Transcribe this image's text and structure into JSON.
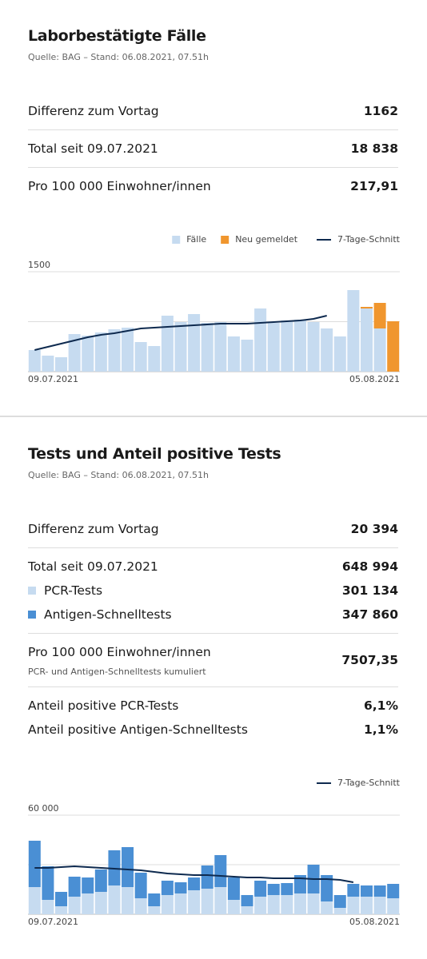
{
  "sections": [
    {
      "title": "Laborbestätigte Fälle",
      "source": "Quelle: BAG – Stand: 06.08.2021, 07.51h",
      "groups": [
        [
          {
            "label": "Differenz zum Vortag",
            "value": "1162"
          }
        ],
        [
          {
            "label": "Total seit 09.07.2021",
            "value": "18 838"
          }
        ],
        [
          {
            "label": "Pro 100 000 Einwohner/innen",
            "value": "217,91"
          }
        ]
      ]
    },
    {
      "title": "Tests und Anteil positive Tests",
      "source": "Quelle: BAG – Stand: 06.08.2021, 07.51h",
      "groups": [
        [
          {
            "label": "Differenz zum Vortag",
            "value": "20 394"
          }
        ],
        [
          {
            "label": "Total seit 09.07.2021",
            "value": "648 994"
          },
          {
            "label": "PCR-Tests",
            "value": "301 134",
            "marker": "#c6dbf0"
          },
          {
            "label": "Antigen-Schnelltests",
            "value": "347 860",
            "marker": "#4a8fd4"
          }
        ],
        [
          {
            "label": "Pro 100 000 Einwohner/innen",
            "note": "PCR- und Antigen-Schnelltests kumuliert",
            "value": "7507,35"
          }
        ],
        [
          {
            "label": "Anteil positive PCR-Tests",
            "value": "6,1%"
          },
          {
            "label": "Anteil positive Antigen-Schnelltests",
            "value": "1,1%"
          }
        ]
      ]
    }
  ],
  "chart_data": [
    {
      "type": "bar",
      "stacked": true,
      "categories": [
        "09.07.2021",
        null,
        null,
        null,
        null,
        null,
        null,
        null,
        null,
        null,
        null,
        null,
        null,
        null,
        null,
        null,
        null,
        null,
        null,
        null,
        null,
        null,
        null,
        null,
        null,
        null,
        null,
        "05.08.2021"
      ],
      "ylim": [
        0,
        1500
      ],
      "yticks": [
        1500
      ],
      "grid_lines": [
        750,
        1500
      ],
      "series": [
        {
          "name": "Fälle",
          "color": "#c6dbf0",
          "values": [
            324,
            240,
            216,
            564,
            540,
            588,
            636,
            660,
            444,
            384,
            840,
            744,
            864,
            732,
            744,
            528,
            480,
            948,
            732,
            768,
            780,
            744,
            648,
            528,
            1224,
            948,
            648,
            0
          ]
        },
        {
          "name": "Neu gemeldet",
          "color": "#f0962e",
          "values": [
            0,
            0,
            0,
            0,
            0,
            0,
            0,
            0,
            0,
            0,
            0,
            0,
            0,
            0,
            0,
            0,
            0,
            0,
            0,
            0,
            0,
            0,
            0,
            0,
            0,
            24,
            384,
            756
          ]
        },
        {
          "name": "7-Tage-Schnitt",
          "color": "#0e2a4f",
          "type": "line",
          "values": [
            324,
            372,
            420,
            468,
            516,
            552,
            576,
            612,
            648,
            660,
            672,
            684,
            696,
            708,
            720,
            720,
            720,
            732,
            744,
            756,
            768,
            792,
            840,
            null,
            null,
            null,
            null,
            null
          ]
        }
      ]
    },
    {
      "type": "bar",
      "stacked": true,
      "categories": [
        "09.07.2021",
        null,
        null,
        null,
        null,
        null,
        null,
        null,
        null,
        null,
        null,
        null,
        null,
        null,
        null,
        null,
        null,
        null,
        null,
        null,
        null,
        null,
        null,
        null,
        null,
        null,
        null,
        "05.08.2021"
      ],
      "ylim": [
        0,
        60000
      ],
      "yticks": [
        {
          "value": 60000,
          "label": "60 000"
        }
      ],
      "grid_lines": [
        30000,
        60000
      ],
      "series": [
        {
          "color": "#c6dbf0",
          "values": [
            16450,
            8710,
            4840,
            10650,
            12580,
            13550,
            17420,
            16450,
            9680,
            4840,
            11620,
            12580,
            14520,
            15490,
            16450,
            8710,
            4840,
            10650,
            11620,
            11620,
            12580,
            12580,
            7740,
            3870,
            10650,
            10650,
            10650,
            9680
          ]
        },
        {
          "color": "#4a8fd4",
          "values": [
            28070,
            20330,
            8710,
            12100,
            9680,
            13550,
            21300,
            24200,
            15490,
            7740,
            8710,
            6780,
            7740,
            14040,
            19360,
            13550,
            6780,
            9680,
            6780,
            7260,
            11130,
            17420,
            15970,
            7740,
            7740,
            6780,
            6780,
            8710
          ]
        },
        {
          "name": "7-Tage-Schnitt",
          "color": "#0e2a4f",
          "type": "line",
          "values": [
            28070,
            28070,
            28550,
            29040,
            28550,
            28070,
            27590,
            27100,
            26620,
            25650,
            24680,
            24200,
            23710,
            23710,
            23230,
            22740,
            22260,
            22260,
            21780,
            21780,
            21780,
            21300,
            21300,
            20810,
            19360,
            null,
            null,
            null
          ]
        }
      ]
    }
  ]
}
